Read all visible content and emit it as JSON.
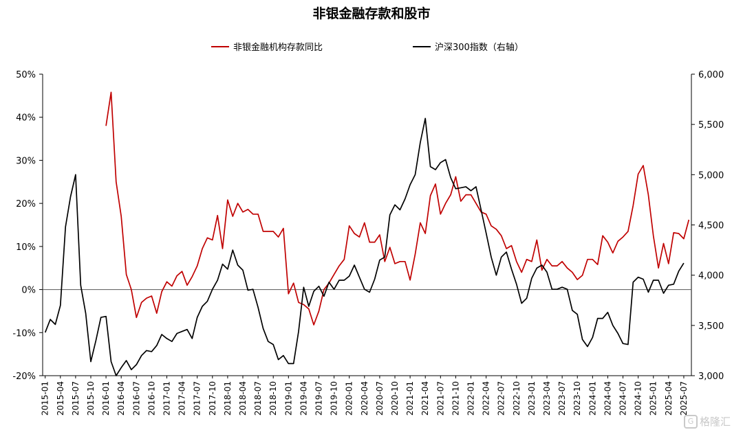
{
  "chart_data": {
    "type": "line",
    "title": "非银金融存款和股市",
    "left_axis": {
      "ticks": [
        "-20%",
        "-10%",
        "0%",
        "10%",
        "20%",
        "30%",
        "40%",
        "50%"
      ],
      "min": -20,
      "max": 50
    },
    "right_axis": {
      "ticks": [
        "3,000",
        "3,500",
        "4,000",
        "4,500",
        "5,000",
        "5,500",
        "6,000"
      ],
      "min": 3000,
      "max": 6000
    },
    "x_tick_labels": [
      "2015-01",
      "2015-04",
      "2015-07",
      "2015-10",
      "2016-01",
      "2016-04",
      "2016-07",
      "2016-10",
      "2017-01",
      "2017-04",
      "2017-07",
      "2017-10",
      "2018-01",
      "2018-04",
      "2018-07",
      "2018-10",
      "2019-01",
      "2019-04",
      "2019-07",
      "2019-10",
      "2020-01",
      "2020-04",
      "2020-07",
      "2020-10",
      "2021-01",
      "2021-04",
      "2021-07",
      "2021-10",
      "2022-01",
      "2022-04",
      "2022-07",
      "2022-10",
      "2023-01",
      "2023-04",
      "2023-07",
      "2023-10",
      "2024-01",
      "2024-04",
      "2024-07",
      "2024-10",
      "2025-01",
      "2025-04",
      "2025-07"
    ],
    "series": [
      {
        "name": "非银金融机构存款同比",
        "axis": "left",
        "color": "#c00000",
        "start": "2016-01",
        "values": [
          38,
          45.8,
          25,
          17,
          3.5,
          0,
          -6.5,
          -3,
          -2,
          -1.5,
          -5.5,
          -0.5,
          1.8,
          0.8,
          3.2,
          4.2,
          1,
          3,
          5.5,
          9.5,
          12,
          11.5,
          17.2,
          9.5,
          20.8,
          17,
          20,
          18,
          18.6,
          17.5,
          17.5,
          13.5,
          13.5,
          13.5,
          12.2,
          14.2,
          -1,
          1.5,
          -3,
          -3.5,
          -4.5,
          -8.2,
          -5,
          0,
          1.5,
          3.5,
          5.5,
          7,
          14.8,
          13,
          12.2,
          15.5,
          11,
          11,
          12.7,
          6.5,
          9.8,
          6,
          6.5,
          6.5,
          2.2,
          8.2,
          15.5,
          13,
          21.8,
          24.5,
          17.5,
          20,
          22,
          26.2,
          20.5,
          22,
          22,
          20,
          18,
          17.5,
          14.8,
          14,
          12.5,
          9.5,
          10.2,
          6.5,
          4,
          7,
          6.5,
          11.5,
          4.5,
          7,
          5.5,
          5.5,
          6.5,
          5,
          4,
          2.3,
          3.3,
          7,
          7,
          5.8,
          12.5,
          11,
          8.5,
          11.2,
          12.2,
          13.5,
          19.5,
          26.8,
          28.8,
          22,
          12.5,
          5,
          10.7,
          6,
          13.2,
          13,
          11.8,
          16.2
        ]
      },
      {
        "name": "沪深300指数（右轴）",
        "axis": "right",
        "color": "#000000",
        "start": "2015-01",
        "values": [
          3430,
          3560,
          3510,
          3700,
          4480,
          4780,
          5000,
          3900,
          3620,
          3140,
          3350,
          3580,
          3590,
          3140,
          3000,
          3080,
          3150,
          3060,
          3110,
          3200,
          3250,
          3240,
          3300,
          3410,
          3370,
          3340,
          3420,
          3440,
          3460,
          3370,
          3580,
          3690,
          3740,
          3860,
          3950,
          4110,
          4060,
          4250,
          4100,
          4050,
          3850,
          3860,
          3680,
          3470,
          3340,
          3310,
          3160,
          3200,
          3120,
          3120,
          3440,
          3880,
          3690,
          3840,
          3890,
          3790,
          3930,
          3860,
          3950,
          3950,
          3990,
          4100,
          3980,
          3860,
          3830,
          3960,
          4150,
          4180,
          4600,
          4700,
          4650,
          4760,
          4900,
          5000,
          5320,
          5560,
          5080,
          5050,
          5120,
          5150,
          4970,
          4860,
          4870,
          4880,
          4840,
          4880,
          4650,
          4420,
          4180,
          4000,
          4180,
          4230,
          4060,
          3910,
          3720,
          3770,
          3970,
          4070,
          4100,
          4030,
          3860,
          3860,
          3880,
          3860,
          3650,
          3610,
          3360,
          3290,
          3380,
          3570,
          3570,
          3630,
          3500,
          3420,
          3320,
          3310,
          3930,
          3980,
          3960,
          3830,
          3950,
          3950,
          3820,
          3900,
          3910,
          4040,
          4120
        ]
      }
    ]
  },
  "watermark": {
    "icon": "G",
    "text": "格隆汇"
  }
}
